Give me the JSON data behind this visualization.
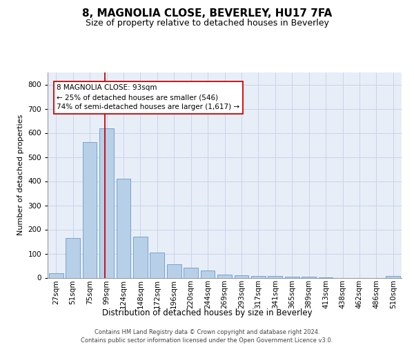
{
  "title1": "8, MAGNOLIA CLOSE, BEVERLEY, HU17 7FA",
  "title2": "Size of property relative to detached houses in Beverley",
  "xlabel": "Distribution of detached houses by size in Beverley",
  "ylabel": "Number of detached properties",
  "footnote": "Contains HM Land Registry data © Crown copyright and database right 2024.\nContains public sector information licensed under the Open Government Licence v3.0.",
  "categories": [
    "27sqm",
    "51sqm",
    "75sqm",
    "99sqm",
    "124sqm",
    "148sqm",
    "172sqm",
    "196sqm",
    "220sqm",
    "244sqm",
    "269sqm",
    "293sqm",
    "317sqm",
    "341sqm",
    "365sqm",
    "389sqm",
    "413sqm",
    "438sqm",
    "462sqm",
    "486sqm",
    "510sqm"
  ],
  "values": [
    20,
    163,
    562,
    620,
    410,
    170,
    103,
    57,
    42,
    31,
    14,
    10,
    8,
    6,
    4,
    3,
    2,
    0,
    0,
    0,
    7
  ],
  "bar_color": "#b8cfe8",
  "bar_edge_color": "#6699cc",
  "vline_color": "#cc0000",
  "vline_x": 2.9,
  "annotation_text": "8 MAGNOLIA CLOSE: 93sqm\n← 25% of detached houses are smaller (546)\n74% of semi-detached houses are larger (1,617) →",
  "annotation_box_facecolor": "#ffffff",
  "annotation_box_edgecolor": "#cc0000",
  "ylim": [
    0,
    850
  ],
  "yticks": [
    0,
    100,
    200,
    300,
    400,
    500,
    600,
    700,
    800
  ],
  "grid_color": "#c8d4e8",
  "bg_color": "#e8eef8",
  "title1_fontsize": 11,
  "title2_fontsize": 9,
  "ylabel_fontsize": 8,
  "xlabel_fontsize": 8.5,
  "tick_fontsize": 7.5,
  "footnote_fontsize": 6,
  "annotation_fontsize": 7.5
}
